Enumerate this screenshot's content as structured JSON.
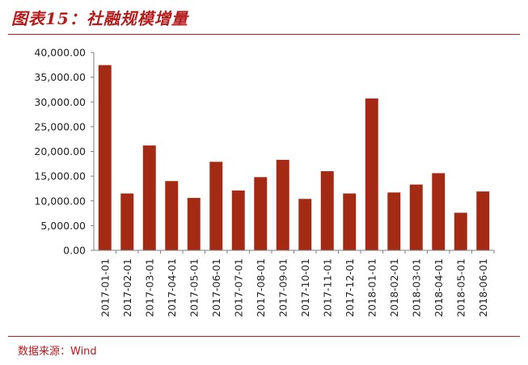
{
  "header": {
    "title": "图表15：社融规模增量"
  },
  "footer": {
    "source": "数据来源：Wind"
  },
  "colors": {
    "bar": "#a52a14",
    "accent": "#b51b1b",
    "axis": "#7f7f7f"
  },
  "chart_data": {
    "type": "bar",
    "title": "",
    "xlabel": "",
    "ylabel": "",
    "ylim": [
      0,
      40000
    ],
    "yticks": [
      "0.00",
      "5,000.00",
      "10,000.00",
      "15,000.00",
      "20,000.00",
      "25,000.00",
      "30,000.00",
      "35,000.00",
      "40,000.00"
    ],
    "categories": [
      "2017-01-01",
      "2017-02-01",
      "2017-03-01",
      "2017-04-01",
      "2017-05-01",
      "2017-06-01",
      "2017-07-01",
      "2017-08-01",
      "2017-09-01",
      "2017-10-01",
      "2017-11-01",
      "2017-12-01",
      "2018-01-01",
      "2018-02-01",
      "2018-03-01",
      "2018-04-01",
      "2018-05-01",
      "2018-06-01"
    ],
    "values": [
      37450,
      11500,
      21200,
      14000,
      10600,
      17900,
      12100,
      14800,
      18300,
      10400,
      16000,
      11500,
      30700,
      11700,
      13300,
      15600,
      7600,
      11900
    ],
    "grid": false,
    "legend": "none"
  }
}
